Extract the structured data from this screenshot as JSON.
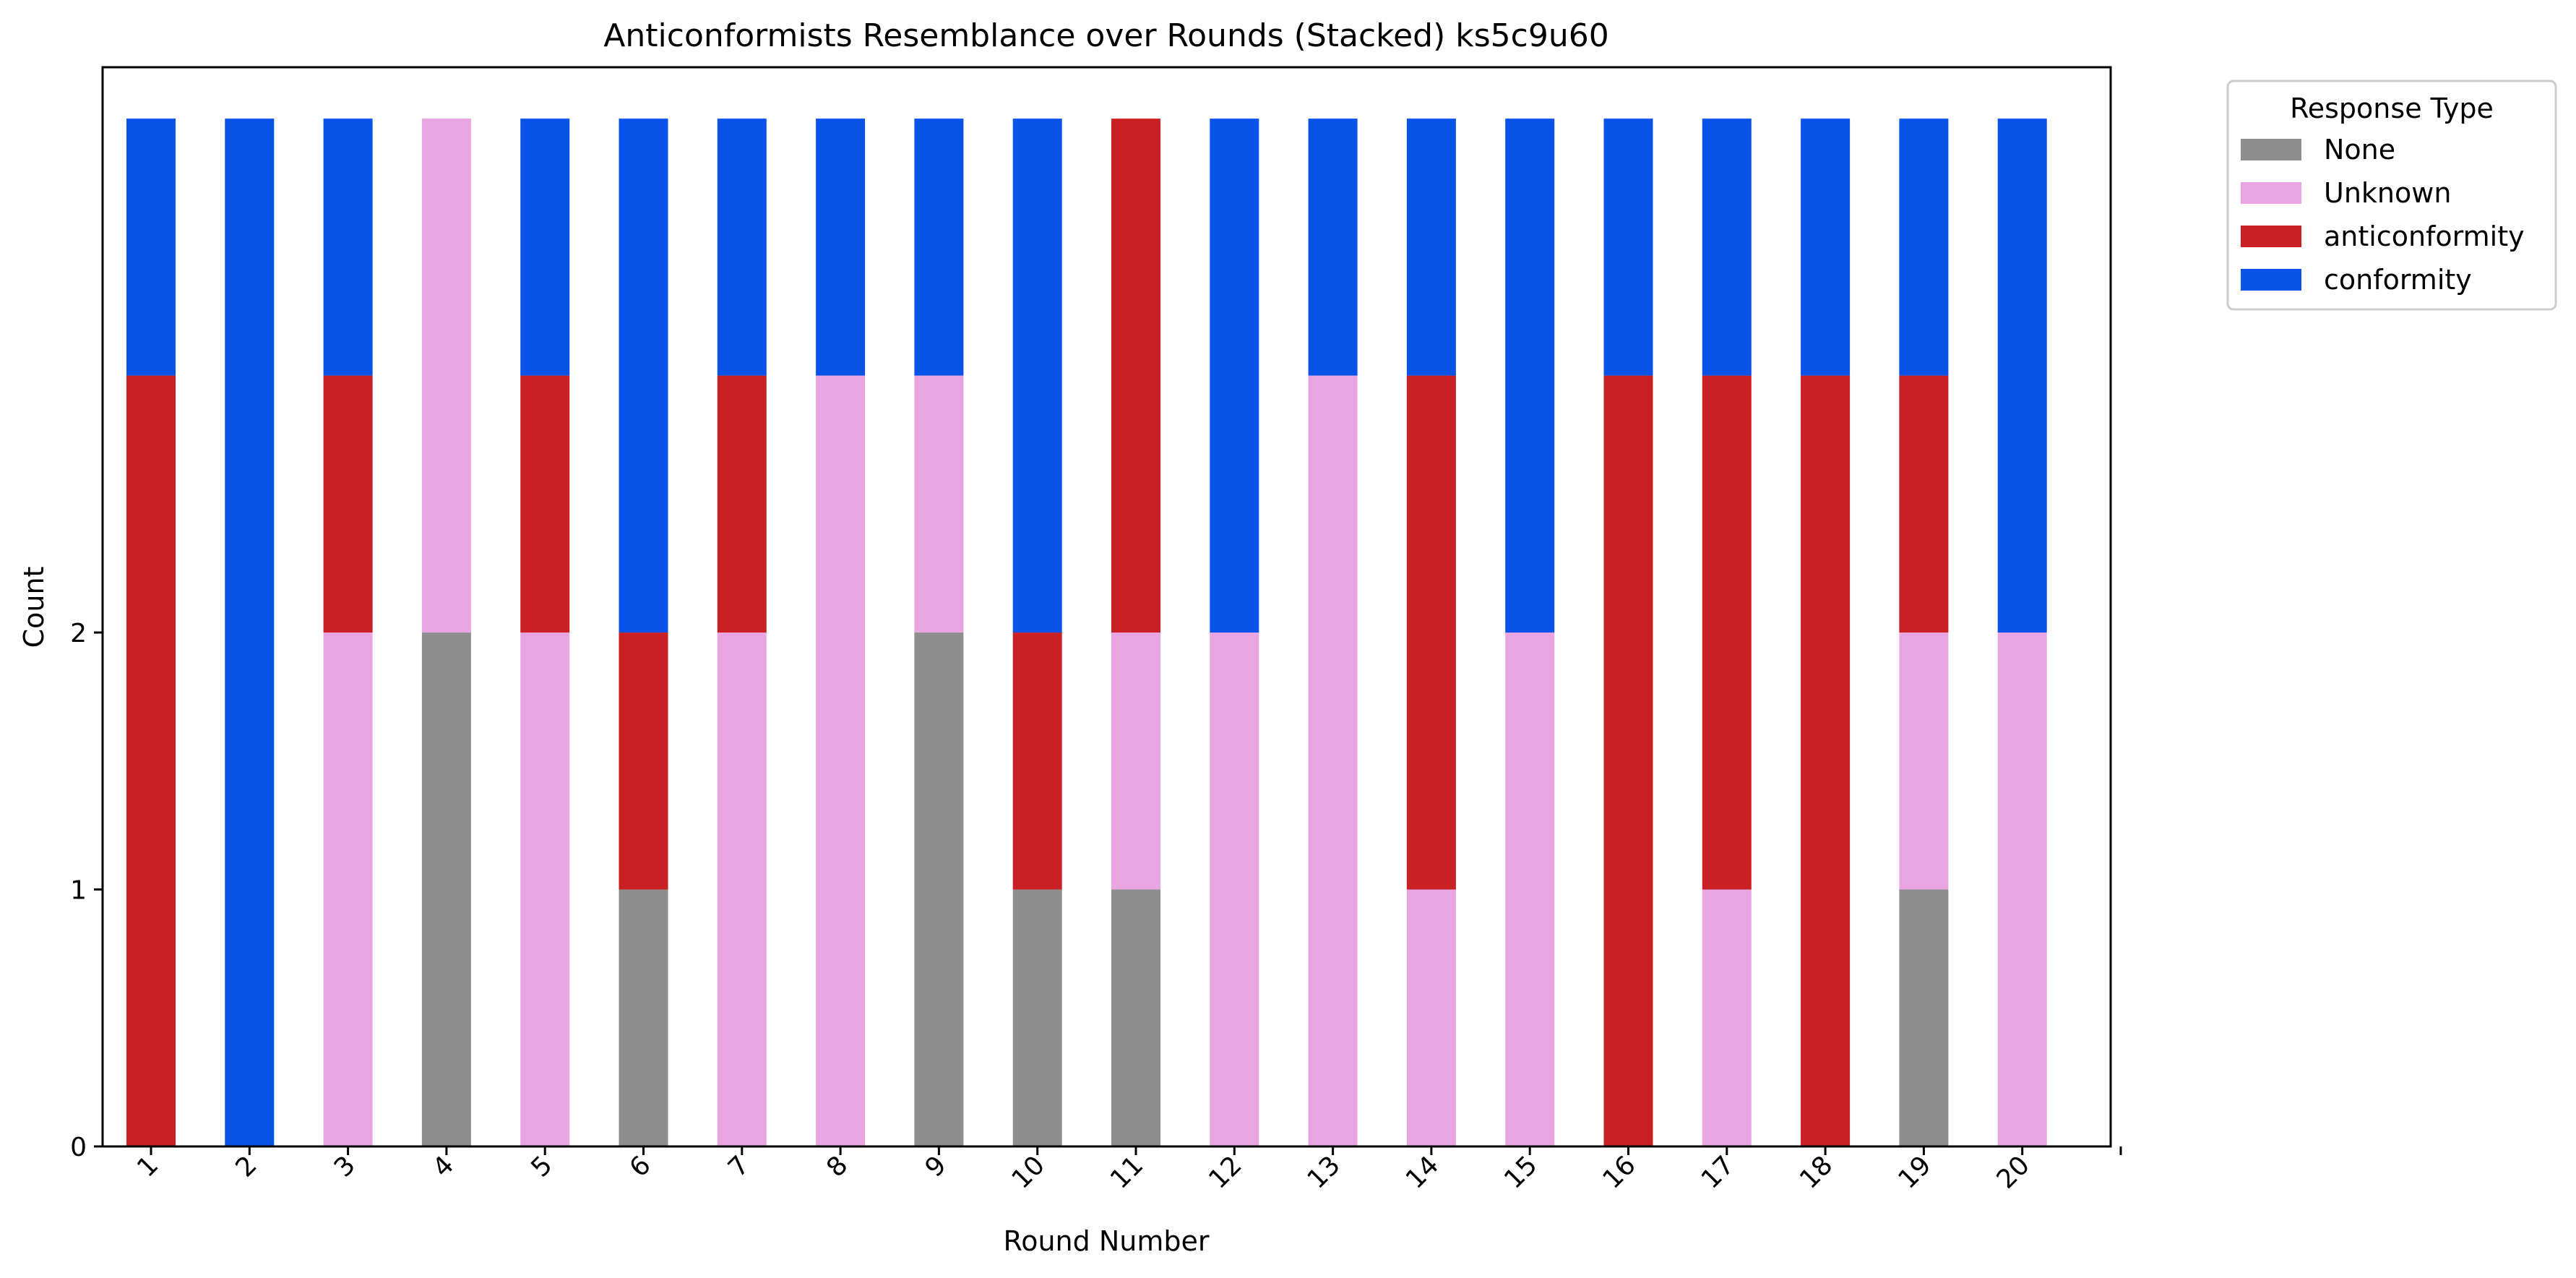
{
  "chart_data": {
    "type": "bar",
    "stacked": true,
    "title": "Anticonformists Resemblance over Rounds (Stacked) ks5c9u60",
    "xlabel": "Round Number",
    "ylabel": "Count",
    "categories": [
      "1",
      "2",
      "3",
      "4",
      "5",
      "6",
      "7",
      "8",
      "9",
      "10",
      "11",
      "12",
      "13",
      "14",
      "15",
      "16",
      "17",
      "18",
      "19",
      "20"
    ],
    "y_ticks": [
      0,
      1,
      2
    ],
    "ylim": [
      0,
      4.2
    ],
    "x_ticks_rotated": true,
    "grid": false,
    "legend": {
      "title": "Response Type",
      "placement": "outside-top-right"
    },
    "series": [
      {
        "name": "None",
        "color": "#8e8e8e",
        "values": [
          0,
          0,
          0,
          2,
          0,
          1,
          0,
          0,
          2,
          1,
          1,
          0,
          0,
          0,
          0,
          0,
          0,
          0,
          1,
          0
        ]
      },
      {
        "name": "Unknown",
        "color": "#e9a5e1",
        "values": [
          0,
          0,
          2,
          2,
          2,
          0,
          2,
          3,
          1,
          0,
          1,
          2,
          3,
          1,
          2,
          0,
          1,
          0,
          1,
          2
        ]
      },
      {
        "name": "anticonformity",
        "color": "#c92123",
        "values": [
          3,
          0,
          1,
          0,
          1,
          1,
          1,
          0,
          0,
          1,
          2,
          0,
          0,
          2,
          0,
          3,
          2,
          3,
          1,
          0
        ]
      },
      {
        "name": "conformity",
        "color": "#0953e8",
        "values": [
          1,
          4,
          1,
          0,
          1,
          2,
          1,
          1,
          1,
          2,
          0,
          2,
          1,
          1,
          2,
          1,
          1,
          1,
          1,
          2
        ]
      }
    ]
  }
}
